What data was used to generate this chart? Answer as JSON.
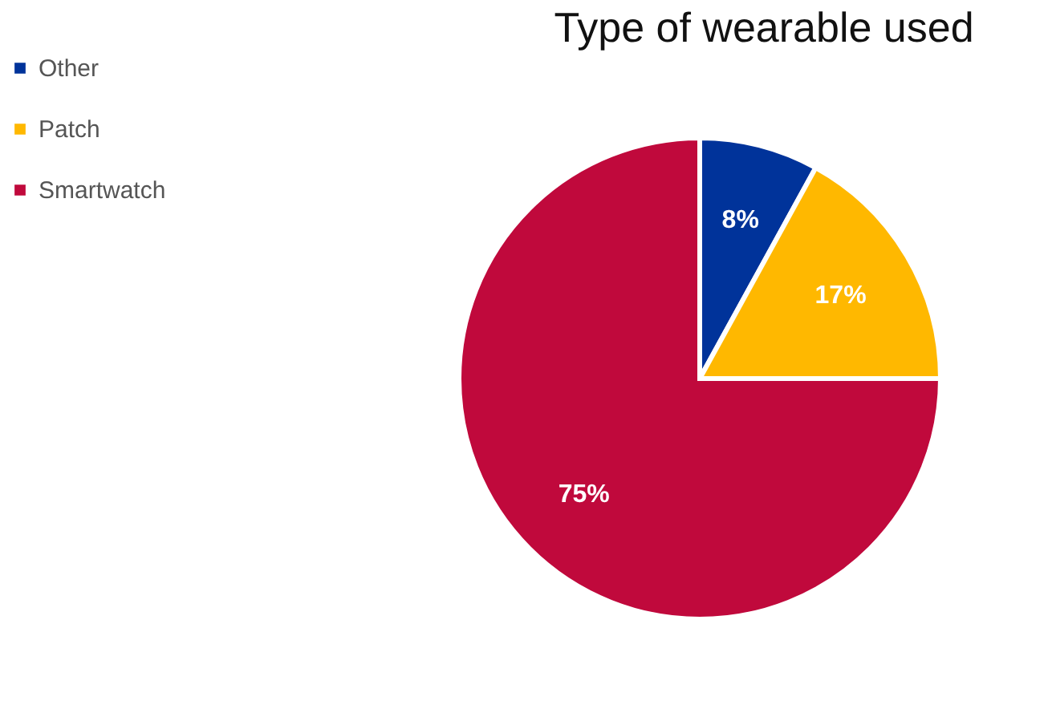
{
  "chart_data": {
    "type": "pie",
    "title": "Type of wearable used",
    "categories": [
      "Other",
      "Patch",
      "Smartwatch"
    ],
    "values": [
      8,
      17,
      75
    ],
    "colors": [
      "#00339a",
      "#ffb800",
      "#c0093c"
    ],
    "value_labels": [
      "8%",
      "17%",
      "75%"
    ],
    "legend": "left"
  }
}
